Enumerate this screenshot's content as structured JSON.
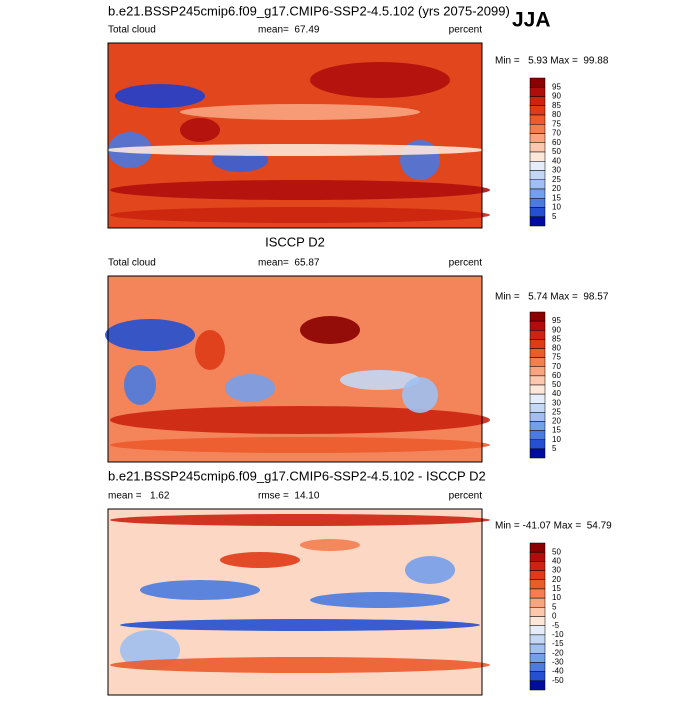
{
  "header": {
    "title": "b.e21.BSSP245cmip6.f09_g17.CMIP6-SSP2-4.5.102 (yrs 2075-2099)",
    "season": "JJA"
  },
  "panels": [
    {
      "variable": "Total cloud",
      "stat": "mean=  67.49",
      "units": "percent",
      "minmax": "Min =   5.93 Max =  99.88",
      "colorbar": [
        "95",
        "90",
        "85",
        "80",
        "75",
        "70",
        "60",
        "50",
        "40",
        "30",
        "25",
        "20",
        "15",
        "10",
        "5"
      ]
    },
    {
      "title": "ISCCP D2",
      "variable": "Total cloud",
      "stat": "mean=  65.87",
      "units": "percent",
      "minmax": "Min =   5.74 Max =  98.57",
      "colorbar": [
        "95",
        "90",
        "85",
        "80",
        "75",
        "70",
        "60",
        "50",
        "40",
        "30",
        "25",
        "20",
        "15",
        "10",
        "5"
      ]
    },
    {
      "title": "b.e21.BSSP245cmip6.f09_g17.CMIP6-SSP2-4.5.102 - ISCCP D2",
      "variable": "mean =   1.62",
      "stat": "rmse =  14.10",
      "units": "percent",
      "minmax": "Min = -41.07 Max =  54.79",
      "colorbar": [
        "50",
        "40",
        "30",
        "20",
        "15",
        "10",
        "5",
        "0",
        "-5",
        "-10",
        "-15",
        "-20",
        "-30",
        "-40",
        "-50"
      ]
    }
  ]
}
